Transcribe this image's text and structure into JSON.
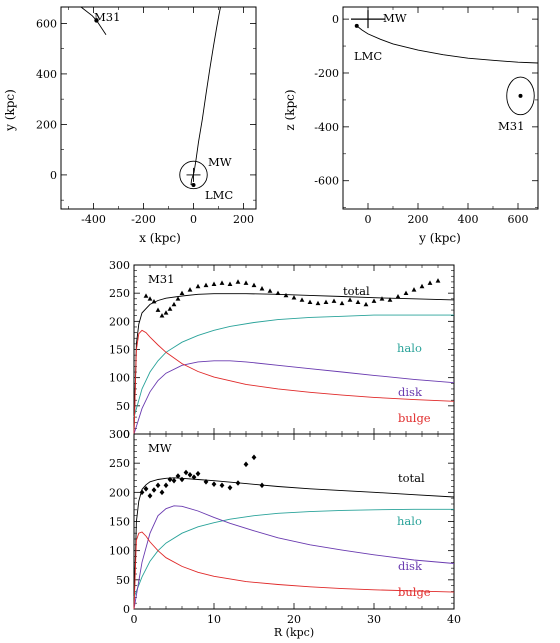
{
  "chart_data": [
    {
      "type": "line",
      "xlabel": "x (kpc)",
      "ylabel": "y (kpc)",
      "xlim": [
        -530,
        250
      ],
      "ylim": [
        -135,
        665
      ],
      "xticks": [
        -400,
        -200,
        0,
        200
      ],
      "yticks": [
        0,
        200,
        400,
        600
      ],
      "annotations": [
        {
          "text": "M31",
          "x": -388,
          "y": 612
        },
        {
          "text": "MW",
          "x": 0,
          "y": 0
        },
        {
          "text": "LMC",
          "x": 0,
          "y": -40
        }
      ],
      "series": [
        {
          "kind": "orbit",
          "x": [
            -10,
            -8,
            2,
            10,
            20,
            35,
            50,
            65,
            80,
            92,
            102,
            108
          ],
          "y": [
            -40,
            -20,
            10,
            60,
            130,
            220,
            320,
            420,
            510,
            580,
            635,
            665
          ]
        },
        {
          "kind": "m31_track",
          "x": [
            -450,
            -405,
            -388,
            -350
          ],
          "y": [
            665,
            630,
            612,
            555
          ]
        },
        {
          "kind": "circle",
          "cx": 0,
          "cy": 0,
          "r": 55
        }
      ]
    },
    {
      "type": "line",
      "xlabel": "y (kpc)",
      "ylabel": "z (kpc)",
      "xlim": [
        -100,
        680
      ],
      "ylim": [
        -705,
        45
      ],
      "xticks": [
        0,
        200,
        400,
        600
      ],
      "yticks": [
        0,
        -200,
        -400,
        -600
      ],
      "annotations": [
        {
          "text": "MW",
          "x": 0,
          "y": 0
        },
        {
          "text": "LMC",
          "x": -45,
          "y": -25
        },
        {
          "text": "M31",
          "x": 610,
          "y": -285
        }
      ],
      "series": [
        {
          "kind": "orbit",
          "x": [
            -45,
            -25,
            0,
            50,
            100,
            200,
            300,
            400,
            500,
            600,
            680
          ],
          "y": [
            -25,
            -40,
            -55,
            -75,
            -92,
            -115,
            -132,
            -145,
            -153,
            -160,
            -163
          ]
        },
        {
          "kind": "ellipse",
          "cx": 610,
          "cy": -285,
          "rx": 55,
          "ry": 70
        }
      ]
    },
    {
      "type": "scatter",
      "label": "M31",
      "xlim": [
        0,
        40
      ],
      "ylim": [
        0,
        300
      ],
      "yticks": [
        0,
        50,
        100,
        150,
        200,
        250,
        300
      ],
      "series": [
        {
          "name": "total",
          "x": [
            0,
            0.3,
            0.6,
            1,
            2,
            3,
            4,
            6,
            8,
            10,
            14,
            18,
            22,
            26,
            30,
            35,
            40
          ],
          "y": [
            0,
            160,
            195,
            215,
            230,
            237,
            241,
            245,
            248,
            249,
            249,
            248,
            246,
            244,
            242,
            240,
            238
          ]
        },
        {
          "name": "halo",
          "x": [
            0,
            1,
            2,
            3,
            4,
            6,
            8,
            10,
            12,
            15,
            18,
            22,
            26,
            30,
            35,
            40
          ],
          "y": [
            30,
            80,
            110,
            130,
            145,
            163,
            175,
            184,
            191,
            198,
            203,
            207,
            209,
            211,
            211,
            211
          ]
        },
        {
          "name": "disk",
          "x": [
            0,
            1,
            2,
            3,
            4,
            6,
            8,
            10,
            12,
            14,
            18,
            22,
            26,
            30,
            35,
            40
          ],
          "y": [
            0,
            45,
            75,
            95,
            108,
            122,
            128,
            130,
            130,
            128,
            122,
            116,
            110,
            104,
            97,
            91
          ]
        },
        {
          "name": "bulge",
          "x": [
            0,
            0.3,
            0.6,
            1,
            1.5,
            2,
            3,
            4,
            6,
            8,
            10,
            14,
            18,
            22,
            26,
            30,
            35,
            40
          ],
          "y": [
            0,
            150,
            178,
            184,
            180,
            172,
            158,
            145,
            125,
            111,
            101,
            88,
            80,
            74,
            69,
            65,
            61,
            58
          ]
        },
        {
          "name": "data",
          "x": [
            1.5,
            2,
            2.5,
            3,
            3.5,
            4,
            4.5,
            5,
            5.5,
            6,
            7,
            8,
            9,
            10,
            11,
            12,
            13,
            14,
            15,
            16,
            17,
            18,
            19,
            20,
            21,
            22,
            23,
            24,
            25,
            26,
            27,
            28,
            29,
            30,
            31,
            32,
            33,
            34,
            35,
            36,
            37,
            38
          ],
          "y": [
            245,
            240,
            235,
            220,
            210,
            215,
            222,
            230,
            240,
            250,
            256,
            262,
            264,
            266,
            268,
            266,
            270,
            268,
            264,
            258,
            254,
            250,
            246,
            242,
            238,
            234,
            232,
            234,
            236,
            232,
            238,
            234,
            230,
            236,
            240,
            238,
            244,
            250,
            256,
            262,
            268,
            272
          ]
        }
      ]
    },
    {
      "type": "scatter",
      "label": "MW",
      "xlim": [
        0,
        40
      ],
      "ylim": [
        0,
        300
      ],
      "xticks": [
        0,
        10,
        20,
        30,
        40
      ],
      "yticks": [
        0,
        50,
        100,
        150,
        200,
        250,
        300
      ],
      "xlabel": "R (kpc)",
      "series": [
        {
          "name": "total",
          "x": [
            0,
            0.3,
            0.6,
            1,
            1.5,
            2,
            3,
            4,
            5,
            6,
            8,
            10,
            14,
            18,
            22,
            26,
            30,
            35,
            40
          ],
          "y": [
            0,
            150,
            185,
            205,
            213,
            218,
            222,
            224,
            225,
            224,
            222,
            220,
            215,
            210,
            206,
            203,
            200,
            196,
            192
          ]
        },
        {
          "name": "halo",
          "x": [
            0,
            1,
            2,
            3,
            4,
            6,
            8,
            10,
            12,
            15,
            18,
            22,
            26,
            30,
            35,
            40
          ],
          "y": [
            20,
            55,
            82,
            100,
            113,
            130,
            141,
            148,
            154,
            160,
            164,
            167,
            169,
            170,
            171,
            171
          ]
        },
        {
          "name": "disk",
          "x": [
            0,
            0.5,
            1,
            2,
            3,
            4,
            5,
            6,
            8,
            10,
            12,
            15,
            18,
            22,
            26,
            30,
            35,
            40
          ],
          "y": [
            0,
            40,
            80,
            130,
            160,
            172,
            177,
            176,
            168,
            157,
            147,
            134,
            122,
            110,
            101,
            93,
            84,
            78
          ]
        },
        {
          "name": "bulge",
          "x": [
            0,
            0.3,
            0.6,
            1,
            1.5,
            2,
            3,
            4,
            6,
            8,
            10,
            14,
            18,
            22,
            26,
            30,
            35,
            40
          ],
          "y": [
            0,
            118,
            130,
            132,
            125,
            115,
            100,
            88,
            73,
            63,
            56,
            47,
            42,
            38,
            35,
            33,
            31,
            29
          ]
        },
        {
          "name": "data",
          "x": [
            1,
            1.5,
            2,
            2.5,
            3,
            3.5,
            4,
            4.5,
            5,
            5.5,
            6,
            6.5,
            7,
            7.5,
            8,
            9,
            10,
            11,
            12,
            13,
            14,
            15,
            16
          ],
          "y": [
            200,
            206,
            194,
            204,
            212,
            200,
            212,
            222,
            220,
            228,
            222,
            234,
            230,
            226,
            232,
            218,
            214,
            212,
            208,
            216,
            248,
            260,
            212
          ]
        }
      ]
    }
  ],
  "labels": {
    "top_left": {
      "xlabel": "x (kpc)",
      "ylabel": "y (kpc)",
      "m31": "M31",
      "mw": "MW",
      "lmc": "LMC"
    },
    "top_right": {
      "xlabel": "y (kpc)",
      "ylabel": "z (kpc)",
      "m31": "M31",
      "mw": "MW",
      "lmc": "LMC"
    },
    "bottom": {
      "m31_label": "M31",
      "mw_label": "MW",
      "xlabel": "R (kpc)",
      "total": "total",
      "halo": "halo",
      "disk": "disk",
      "bulge": "bulge"
    }
  },
  "colors": {
    "total": "#000000",
    "halo": "#2aa39a",
    "disk": "#6a3bb0",
    "bulge": "#e02a2a"
  }
}
